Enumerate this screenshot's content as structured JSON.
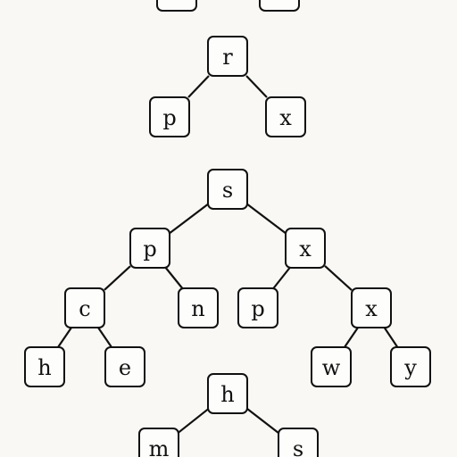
{
  "diagram": {
    "background_color": "#f9f8f4",
    "trees": [
      {
        "id": "top-partial",
        "nodes": [
          {
            "id": "t0a",
            "label": ""
          },
          {
            "id": "t0b",
            "label": ""
          }
        ],
        "edges": []
      },
      {
        "id": "tree-r",
        "nodes": [
          {
            "id": "r",
            "label": "r"
          },
          {
            "id": "r-p",
            "label": "p"
          },
          {
            "id": "r-x",
            "label": "x"
          }
        ],
        "edges": [
          [
            "r",
            "r-p"
          ],
          [
            "r",
            "r-x"
          ]
        ]
      },
      {
        "id": "tree-s",
        "nodes": [
          {
            "id": "s",
            "label": "s"
          },
          {
            "id": "s-p",
            "label": "p"
          },
          {
            "id": "s-x",
            "label": "x"
          },
          {
            "id": "s-c",
            "label": "c"
          },
          {
            "id": "s-n",
            "label": "n"
          },
          {
            "id": "s-p2",
            "label": "p"
          },
          {
            "id": "s-x2",
            "label": "x"
          },
          {
            "id": "s-h",
            "label": "h"
          },
          {
            "id": "s-e",
            "label": "e"
          },
          {
            "id": "s-w",
            "label": "w"
          },
          {
            "id": "s-y",
            "label": "y"
          }
        ],
        "edges": [
          [
            "s",
            "s-p"
          ],
          [
            "s",
            "s-x"
          ],
          [
            "s-p",
            "s-c"
          ],
          [
            "s-p",
            "s-n"
          ],
          [
            "s-x",
            "s-p2"
          ],
          [
            "s-x",
            "s-x2"
          ],
          [
            "s-c",
            "s-h"
          ],
          [
            "s-c",
            "s-e"
          ],
          [
            "s-x2",
            "s-w"
          ],
          [
            "s-x2",
            "s-y"
          ]
        ]
      },
      {
        "id": "tree-h",
        "nodes": [
          {
            "id": "h",
            "label": "h"
          },
          {
            "id": "h-m",
            "label": "m"
          },
          {
            "id": "h-s",
            "label": "s"
          }
        ],
        "edges": [
          [
            "h",
            "h-m"
          ],
          [
            "h",
            "h-s"
          ]
        ]
      }
    ]
  }
}
